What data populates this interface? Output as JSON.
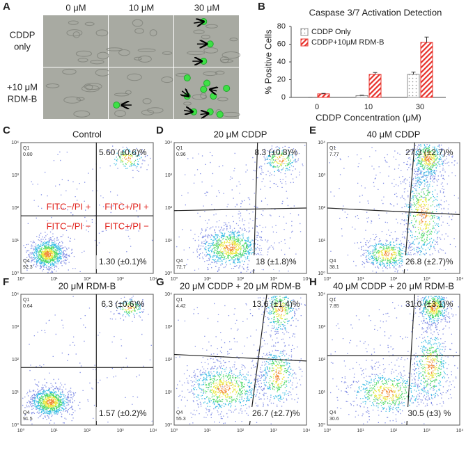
{
  "panel_a": {
    "letter": "A",
    "columns": [
      "0 μM",
      "10 μM",
      "30 μM"
    ],
    "rows": [
      [
        "CDDP",
        "only"
      ],
      [
        "+10 μM",
        "RDM-B"
      ]
    ]
  },
  "chart_data": {
    "type": "bar",
    "panel_letter": "B",
    "title": "Caspase 3/7 Activation Detection",
    "xlabel": "CDDP Concentration (μM)",
    "ylabel": "% Positive Cells",
    "categories": [
      "0",
      "10",
      "30"
    ],
    "series": [
      {
        "name": "CDDP Only",
        "color": "#8c8c8c",
        "values": [
          0,
          2,
          26
        ],
        "errors": [
          0,
          0.5,
          2.5
        ]
      },
      {
        "name": "CDDP+10µM RDM-B",
        "color": "#e8302a",
        "values": [
          4,
          26,
          62
        ],
        "errors": [
          0.5,
          2,
          6
        ]
      }
    ],
    "ylim": [
      0,
      80
    ],
    "yticks": [
      0,
      20,
      40,
      60,
      80
    ],
    "grid": false,
    "legend": "upper left"
  },
  "flow_axis_ticks": [
    "10⁰",
    "10¹",
    "10²",
    "10³",
    "10⁴"
  ],
  "quadrant_names": [
    "Q1",
    "Q4"
  ],
  "flow_panels": [
    {
      "letter": "C",
      "title": "Control",
      "q1": "0.80",
      "q4": "92.3",
      "upper_right": "5.60 (±0.6)%",
      "lower_right": "1.30 (±0.1)%",
      "quadrant_labels": [
        "FITC−/PI +",
        "FITC+/PI +",
        "FITC−/PI −",
        "FITC+/PI −"
      ]
    },
    {
      "letter": "D",
      "title": "20 μM CDDP",
      "q1": "0.96",
      "q4": "72.7",
      "upper_right": "8.3 (±0.8)%",
      "lower_right": "18 (±1.8)%"
    },
    {
      "letter": "E",
      "title": "40 μM CDDP",
      "q1": "7.77",
      "q4": "38.1",
      "upper_right": "27.3 (±2.7)%",
      "lower_right": "26.8 (±2.7)%"
    },
    {
      "letter": "F",
      "title": "20 μM RDM-B",
      "q1": "0.64",
      "q4": "91.5",
      "upper_right": "6.3 (±0.6)%",
      "lower_right": "1.57 (±0.2)%"
    },
    {
      "letter": "G",
      "title": "20 μM CDDP + 20 μM RDM-B",
      "q1": "4.42",
      "q4": "55.3",
      "upper_right": "13.6 (±1.4)%",
      "lower_right": "26.7 (±2.7)%"
    },
    {
      "letter": "H",
      "title": "40 μM CDDP + 20 μM RDM-B",
      "q1": "7.85",
      "q4": "30.6",
      "upper_right": "31.0 (±3.1)%",
      "lower_right": "30.5 (±3) %"
    }
  ]
}
